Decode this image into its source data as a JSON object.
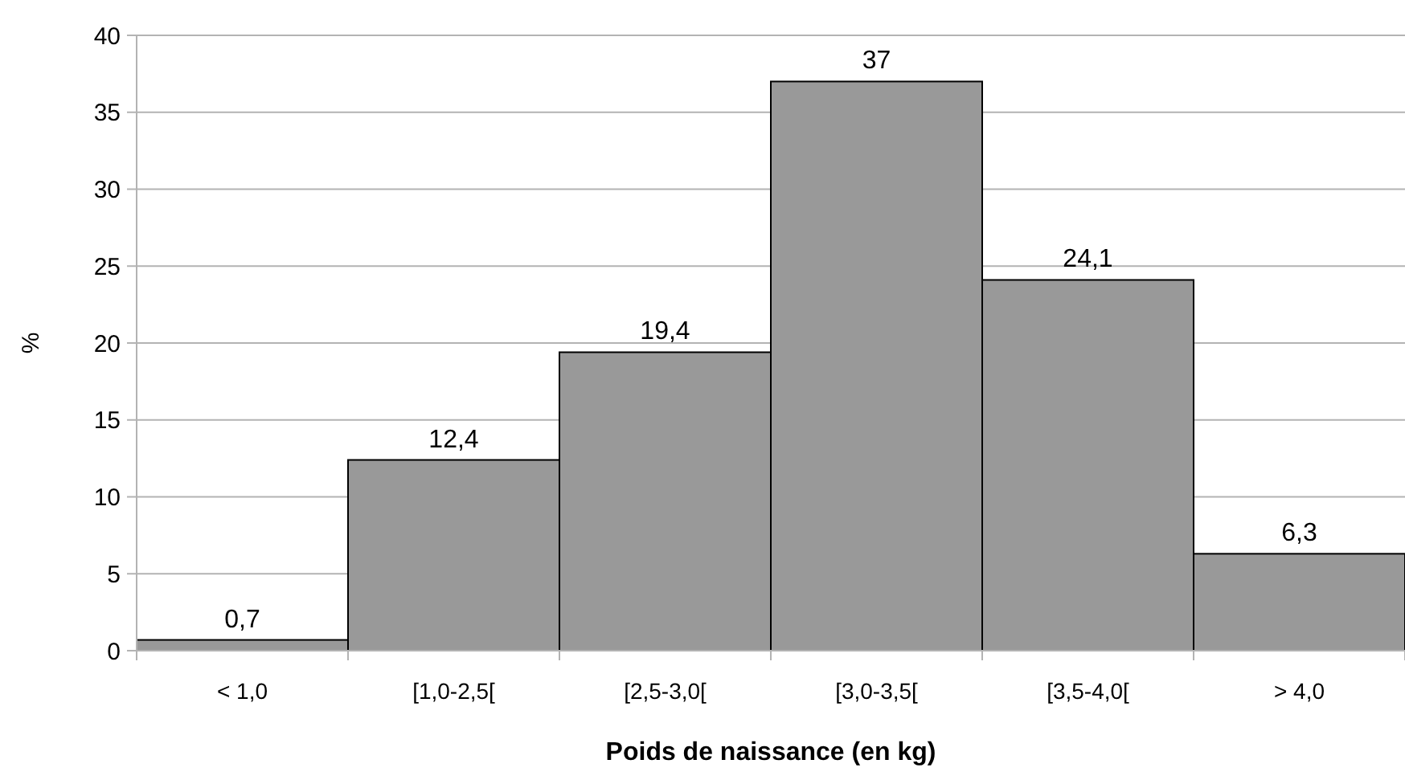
{
  "chart_data": {
    "type": "bar",
    "xlabel": "Poids de naissance (en kg)",
    "ylabel": "%",
    "categories": [
      "< 1,0",
      "[1,0-2,5[",
      "[2,5-3,0[",
      "[3,0-3,5[",
      "[3,5-4,0[",
      "> 4,0"
    ],
    "values": [
      0.7,
      12.4,
      19.4,
      37,
      24.1,
      6.3
    ],
    "value_labels": [
      "0,7",
      "12,4",
      "19,4",
      "37",
      "24,1",
      "6,3"
    ],
    "color": "#999999",
    "ylim": [
      0,
      40
    ],
    "yticks": [
      0,
      5,
      10,
      15,
      20,
      25,
      30,
      35,
      40
    ],
    "grid": "y"
  }
}
